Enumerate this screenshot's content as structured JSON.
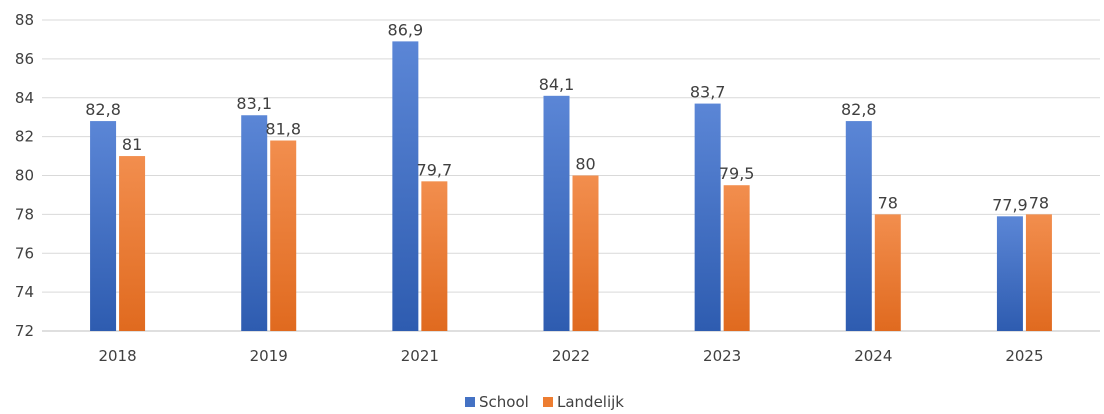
{
  "chart_data": {
    "type": "bar",
    "categories": [
      "2018",
      "2019",
      "2021",
      "2022",
      "2023",
      "2024",
      "2025"
    ],
    "series": [
      {
        "name": "School",
        "values": [
          82.8,
          83.1,
          86.9,
          84.1,
          83.7,
          82.8,
          77.9
        ],
        "labels": [
          "82,8",
          "83,1",
          "86,9",
          "84,1",
          "83,7",
          "82,8",
          "77,9"
        ],
        "color": "#4472C4"
      },
      {
        "name": "Landelijk",
        "values": [
          81,
          81.8,
          79.7,
          80,
          79.5,
          78,
          78
        ],
        "labels": [
          "81",
          "81,8",
          "79,7",
          "80",
          "79,5",
          "78",
          "78"
        ],
        "color": "#ED7D31"
      }
    ],
    "ylim": [
      72,
      88
    ],
    "yticks": [
      72,
      74,
      76,
      78,
      80,
      82,
      84,
      86,
      88
    ],
    "grid": true,
    "legend": "bottom-center"
  }
}
